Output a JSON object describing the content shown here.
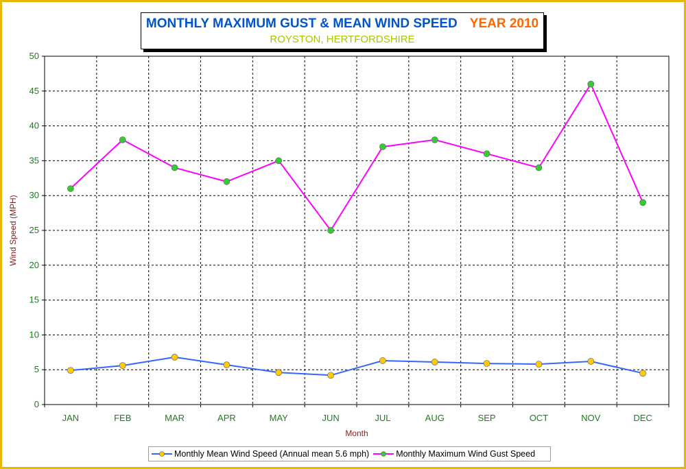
{
  "title": {
    "main": "MONTHLY MAXIMUM GUST & MEAN WIND SPEED",
    "year": "YEAR 2010",
    "subtitle": "ROYSTON, HERTFORDSHIRE"
  },
  "chart_data": {
    "type": "line",
    "title": "MONTHLY MAXIMUM GUST & MEAN WIND SPEED",
    "subtitle": "ROYSTON, HERTFORDSHIRE",
    "xlabel": "Month",
    "ylabel": "Wind Speed (MPH)",
    "ylim": [
      0,
      50
    ],
    "yticks": [
      "0",
      "5",
      "10",
      "15",
      "20",
      "25",
      "30",
      "35",
      "40",
      "45",
      "50"
    ],
    "grid": true,
    "legend_position": "bottom",
    "categories": [
      "JAN",
      "FEB",
      "MAR",
      "APR",
      "MAY",
      "JUN",
      "JUL",
      "AUG",
      "SEP",
      "OCT",
      "NOV",
      "DEC"
    ],
    "series": [
      {
        "name": "Monthly Mean Wind Speed (Annual mean 5.6 mph)",
        "line_color": "#3366ff",
        "marker_color": "#ffcc00",
        "values": [
          4.9,
          5.6,
          6.8,
          5.7,
          4.6,
          4.2,
          6.3,
          6.1,
          5.9,
          5.8,
          6.2,
          4.5
        ]
      },
      {
        "name": "Monthly Maximum Wind Gust Speed",
        "line_color": "#ff00ff",
        "marker_color": "#33cc33",
        "values": [
          31,
          38,
          34,
          32,
          35,
          25,
          37,
          38,
          36,
          34,
          46,
          29
        ]
      }
    ]
  }
}
